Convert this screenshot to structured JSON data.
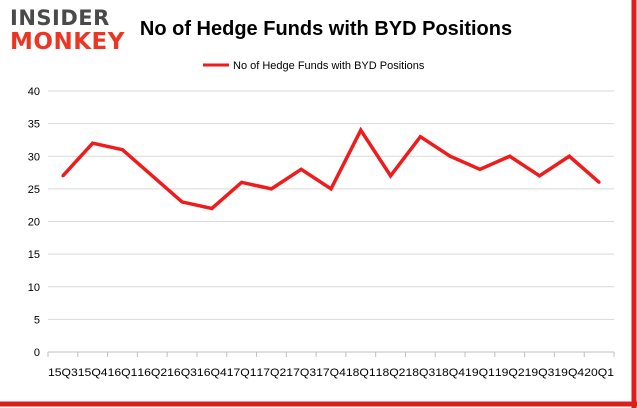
{
  "logo": {
    "line1": "INSIDER",
    "line2": "MONKEY"
  },
  "colors": {
    "series": "#ee1c1c",
    "grid": "#d9d9d9",
    "axis": "#bfbfbf",
    "border": "#dc1e1e",
    "logo_dark": "#4a4a4a",
    "logo_red": "#ee3524"
  },
  "chart_data": {
    "type": "line",
    "title": "No of Hedge Funds with BYD Positions",
    "xlabel": "",
    "ylabel": "",
    "ylim": [
      0,
      40
    ],
    "yticks": [
      0,
      5,
      10,
      15,
      20,
      25,
      30,
      35,
      40
    ],
    "grid": true,
    "legend_position": "top-center",
    "categories": [
      "15Q3",
      "15Q4",
      "16Q1",
      "16Q2",
      "16Q3",
      "16Q4",
      "17Q1",
      "17Q2",
      "17Q3",
      "17Q4",
      "18Q1",
      "18Q2",
      "18Q3",
      "18Q4",
      "19Q1",
      "19Q2",
      "19Q3",
      "19Q4",
      "20Q1"
    ],
    "series": [
      {
        "name": "No of Hedge Funds with BYD Positions",
        "values": [
          27,
          32,
          31,
          27,
          23,
          22,
          26,
          25,
          28,
          25,
          34,
          27,
          33,
          30,
          28,
          30,
          27,
          30,
          26
        ]
      }
    ]
  }
}
